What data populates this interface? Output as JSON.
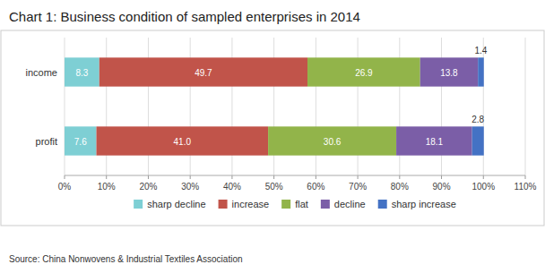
{
  "chart_data": {
    "type": "bar",
    "orientation": "horizontal",
    "stacked": true,
    "data_labels": true,
    "grid": true,
    "legend": "bottom",
    "title": "Chart 1: Business condition of sampled enterprises in 2014",
    "source": "Source: China Nonwovens & Industrial Textiles Association",
    "categories": [
      "profit",
      "income"
    ],
    "series": [
      {
        "name": "sharp decline",
        "color": "#7ecfd4",
        "values": [
          7.6,
          8.3
        ],
        "value_labels": [
          "7.6",
          "8.3"
        ]
      },
      {
        "name": "increase",
        "color": "#c1544a",
        "values": [
          41.0,
          49.7
        ],
        "value_labels": [
          "41.0",
          "49.7"
        ]
      },
      {
        "name": "flat",
        "color": "#92b44a",
        "values": [
          30.6,
          26.9
        ],
        "value_labels": [
          "30.6",
          "26.9"
        ]
      },
      {
        "name": "decline",
        "color": "#7b5ea7",
        "values": [
          18.1,
          13.8
        ],
        "value_labels": [
          "18.1",
          "13.8"
        ]
      },
      {
        "name": "sharp increase",
        "color": "#4472c4",
        "values": [
          2.8,
          1.4
        ],
        "value_labels": [
          "2.8",
          "1.4"
        ]
      }
    ],
    "xlim": [
      0,
      110
    ],
    "xticks": [
      {
        "value": 0,
        "label": "0%"
      },
      {
        "value": 10,
        "label": "10%"
      },
      {
        "value": 20,
        "label": "20%"
      },
      {
        "value": 30,
        "label": "30%"
      },
      {
        "value": 40,
        "label": "40%"
      },
      {
        "value": 50,
        "label": "50%"
      },
      {
        "value": 60,
        "label": "60%"
      },
      {
        "value": 70,
        "label": "70%"
      },
      {
        "value": 80,
        "label": "80%"
      },
      {
        "value": 90,
        "label": "90%"
      },
      {
        "value": 100,
        "label": "100%"
      },
      {
        "value": 110,
        "label": "110%"
      }
    ]
  }
}
